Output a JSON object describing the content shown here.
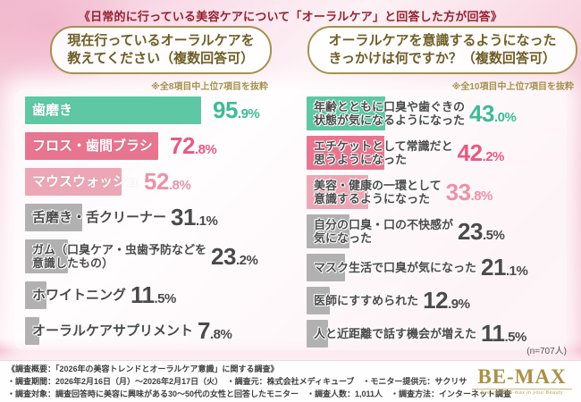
{
  "header": {
    "title": "《日常的に行っている美容ケアについて「オーラルケア」と回答した方が回答》"
  },
  "questions": {
    "left_box": "現在行っているオーラルケアを\n教えてください（複数回答可）",
    "right_box": "オーラルケアを意識するようになった\nきっかけは何ですか？（複数回答可）",
    "left_note": "※全8項目中上位7項目を抜粋",
    "right_note": "※全10項目中上位7項目を抜粋"
  },
  "sample_size": "(n=707人)",
  "colors": {
    "teal": "#5ec7a3",
    "pink": "#e87590",
    "light_pink": "#eca7b6",
    "gray": "#b1b1b1",
    "value_teal": "#3cbc95",
    "value_pink": "#e85a80",
    "value_light_pink": "#eb92a8",
    "value_dark": "#4a4a4a",
    "title_crimson": "#97202f",
    "gold": "#a5914e"
  },
  "chart_data": [
    {
      "type": "bar",
      "title": "現在行っているオーラルケアを教えてください（複数回答可）",
      "note": "※全8項目中上位7項目を抜粋",
      "unit": "%",
      "xlim": [
        0,
        100
      ],
      "categories": [
        "歯磨き",
        "フロス・歯間ブラシ",
        "マウスウォッシュ",
        "舌磨き・舌クリーナー",
        "ガム（口臭ケア・虫歯予防などを\n意識したもの）",
        "ホワイトニング",
        "オーラルケアサプリメント"
      ],
      "values": [
        95.9,
        72.8,
        52.8,
        31.1,
        23.2,
        11.5,
        7.8
      ],
      "display_values": [
        "95.9",
        "72.8",
        "52.8",
        "31.1",
        "23.2",
        "11.5",
        "7.8"
      ],
      "bar_colors": [
        "#5ec7a3",
        "#e87590",
        "#eca7b6",
        "#b1b1b1",
        "#b1b1b1",
        "#b1b1b1",
        "#b1b1b1"
      ],
      "value_colors": [
        "#3cbc95",
        "#e85a80",
        "#eb92a8",
        "#4a4a4a",
        "#4a4a4a",
        "#4a4a4a",
        "#4a4a4a"
      ],
      "label_on_bar": [
        true,
        true,
        true,
        false,
        false,
        false,
        false
      ],
      "two_line": [
        false,
        false,
        false,
        false,
        true,
        false,
        false
      ]
    },
    {
      "type": "bar",
      "title": "オーラルケアを意識するようになったきっかけは何ですか？（複数回答可）",
      "note": "※全10項目中上位7項目を抜粋",
      "unit": "%",
      "xlim": [
        0,
        100
      ],
      "categories": [
        "年齢とともに口臭や歯ぐきの\n状態が気になるようになった",
        "エチケットとして常識だと\n思うようになった",
        "美容・健康の一環として\n意識するようになった",
        "自分の口臭・口の不快感が\n気になった",
        "マスク生活で口臭が気になった",
        "医師にすすめられた",
        "人と近距離で話す機会が増えた"
      ],
      "values": [
        43.0,
        42.2,
        33.8,
        23.5,
        21.1,
        12.9,
        11.5
      ],
      "display_values": [
        "43.0",
        "42.2",
        "33.8",
        "23.5",
        "21.1",
        "12.9",
        "11.5"
      ],
      "bar_colors": [
        "#5ec7a3",
        "#e87590",
        "#eca7b6",
        "#b1b1b1",
        "#b1b1b1",
        "#b1b1b1",
        "#b1b1b1"
      ],
      "value_colors": [
        "#3cbc95",
        "#e85a80",
        "#eb92a8",
        "#4a4a4a",
        "#4a4a4a",
        "#4a4a4a",
        "#4a4a4a"
      ],
      "label_on_bar": [
        false,
        false,
        false,
        false,
        false,
        false,
        false
      ],
      "two_line": [
        true,
        true,
        true,
        true,
        false,
        false,
        false
      ]
    }
  ],
  "footer": {
    "line1": "《調査概要：「2026年の美容トレンドとオーラルケア意識」に関する調査》",
    "line2": "・調査期間：2026年2月16日（月）～2026年2月17日（火）　・調査元：株式会社メディキューブ　・モニター提供元：サクリサ",
    "line3": "・調査対象：調査回答時に美容に興味がある30～50代の女性と回答したモニター　・調査人数：1,011人　・調査方法：インターネット調査",
    "logo_name": "BE-MAX",
    "logo_tagline": "Everyday Be-max in your Beauty"
  }
}
